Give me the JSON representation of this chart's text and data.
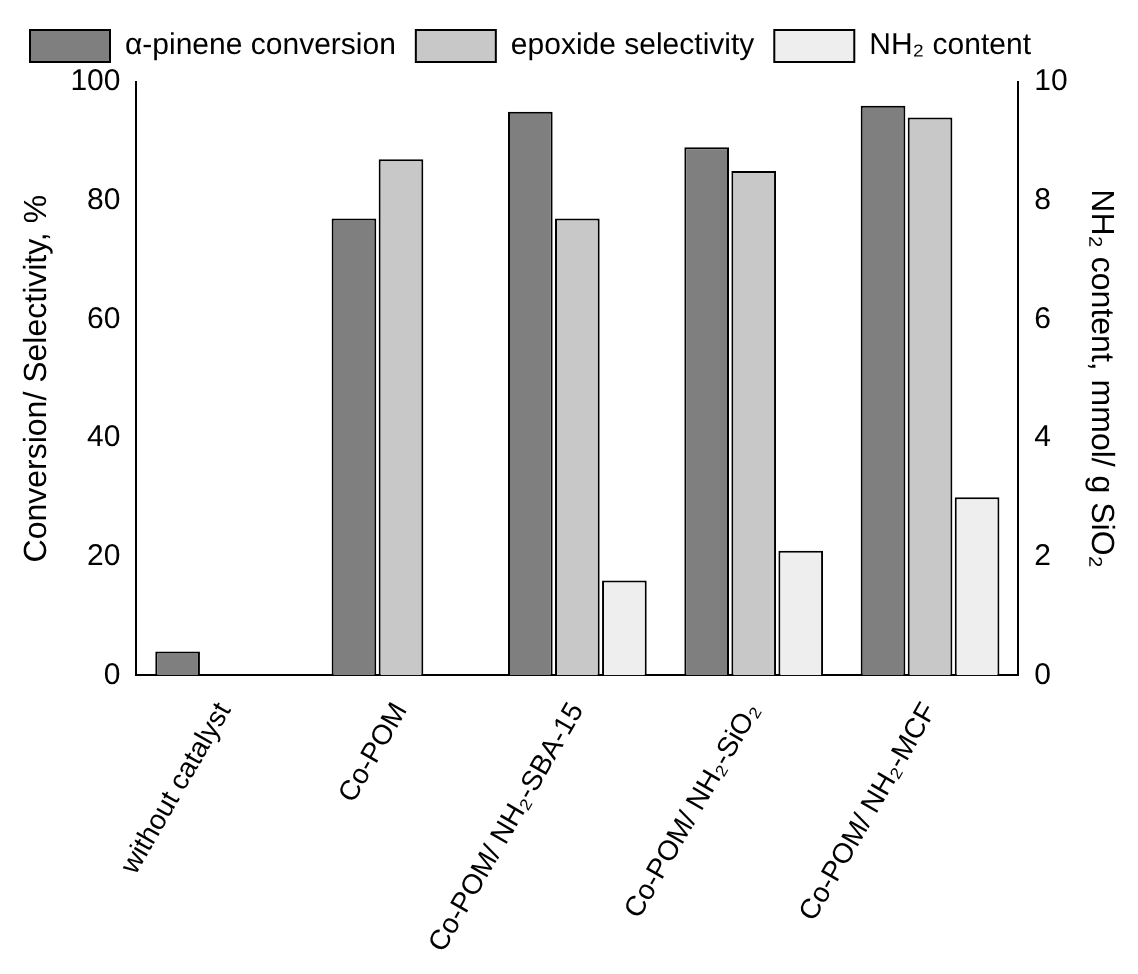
{
  "chart_data": {
    "type": "bar",
    "categories": [
      "without catalyst",
      "Co-POM",
      "Co-POM/ NH₂-SBA-15",
      "Co-POM/ NH₂-SiO₂",
      "Co-POM/ NH₂-MCF"
    ],
    "series": [
      {
        "name": "α-pinene conversion",
        "color": "#7f7f7f",
        "values": [
          4,
          77,
          95,
          89,
          96
        ]
      },
      {
        "name": "epoxide selectivity",
        "color": "#c8c8c8",
        "values": [
          null,
          87,
          77,
          85,
          94
        ]
      },
      {
        "name": "NH₂ content",
        "color": "#eeeeee",
        "axis": "y2",
        "values": [
          null,
          null,
          1.6,
          2.1,
          3.0
        ]
      }
    ],
    "ylabel": "Conversion/ Selectivity, %",
    "y2label": "NH₂ content, mmol/ g SiO₂",
    "ylim": [
      0,
      100
    ],
    "yticks": [
      0,
      20,
      40,
      60,
      80,
      100
    ],
    "y2lim": [
      0,
      10
    ],
    "y2ticks": [
      0,
      2,
      4,
      6,
      8,
      10
    ],
    "grid": false,
    "legend": "top"
  }
}
